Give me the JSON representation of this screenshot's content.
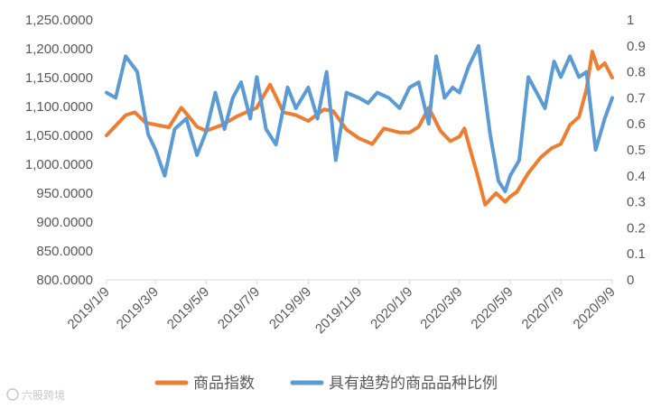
{
  "chart_data": {
    "type": "line",
    "title": "",
    "xlabel": "",
    "ylabel": "",
    "left_axis": {
      "ylim": [
        800,
        1250
      ],
      "ticks": [
        "800.0000",
        "850.0000",
        "900.0000",
        "950.0000",
        "1,000.0000",
        "1,050.0000",
        "1,100.0000",
        "1,150.0000",
        "1,200.0000",
        "1,250.0000"
      ]
    },
    "right_axis": {
      "ylim": [
        0,
        1
      ],
      "ticks": [
        "0",
        "0.1",
        "0.2",
        "0.3",
        "0.4",
        "0.5",
        "0.6",
        "0.7",
        "0.8",
        "0.9",
        "1"
      ]
    },
    "x_ticks": [
      "2019/1/9",
      "2019/3/9",
      "2019/5/9",
      "2019/7/9",
      "2019/9/9",
      "2019/11/9",
      "2020/1/9",
      "2020/3/9",
      "2020/5/9",
      "2020/7/9",
      "2020/9/9"
    ],
    "grid": false,
    "legend_position": "bottom",
    "series": [
      {
        "name": "商品指数",
        "axis": "left",
        "color": "#ED7D31",
        "x": [
          "2019-01-09",
          "2019-02-01",
          "2019-02-12",
          "2019-02-25",
          "2019-03-11",
          "2019-03-25",
          "2019-04-09",
          "2019-04-15",
          "2019-04-28",
          "2019-05-09",
          "2019-05-28",
          "2019-06-15",
          "2019-06-26",
          "2019-07-09",
          "2019-07-25",
          "2019-08-10",
          "2019-08-25",
          "2019-09-09",
          "2019-09-28",
          "2019-10-09",
          "2019-10-25",
          "2019-11-09",
          "2019-11-25",
          "2019-12-09",
          "2019-12-28",
          "2020-01-09",
          "2020-01-20",
          "2020-02-01",
          "2020-02-15",
          "2020-02-27",
          "2020-03-09",
          "2020-03-15",
          "2020-03-22",
          "2020-03-31",
          "2020-04-09",
          "2020-04-22",
          "2020-05-03",
          "2020-05-09",
          "2020-05-17",
          "2020-05-31",
          "2020-06-15",
          "2020-06-28",
          "2020-07-09",
          "2020-07-20",
          "2020-07-31",
          "2020-08-09",
          "2020-08-16",
          "2020-08-23",
          "2020-08-31",
          "2020-09-09"
        ],
        "values": [
          1050,
          1085,
          1090,
          1072,
          1068,
          1064,
          1098,
          1088,
          1065,
          1058,
          1068,
          1083,
          1090,
          1098,
          1138,
          1090,
          1085,
          1075,
          1095,
          1092,
          1060,
          1045,
          1035,
          1062,
          1055,
          1055,
          1065,
          1098,
          1058,
          1040,
          1048,
          1062,
          1025,
          980,
          930,
          950,
          935,
          944,
          952,
          985,
          1012,
          1028,
          1035,
          1068,
          1082,
          1130,
          1195,
          1165,
          1175,
          1150
        ]
      },
      {
        "name": "具有趋势的商品品种比例",
        "axis": "right",
        "color": "#5B9BD5",
        "x": [
          "2019-01-09",
          "2019-01-20",
          "2019-02-01",
          "2019-02-15",
          "2019-02-28",
          "2019-03-09",
          "2019-03-20",
          "2019-04-01",
          "2019-04-15",
          "2019-04-28",
          "2019-05-09",
          "2019-05-20",
          "2019-05-31",
          "2019-06-10",
          "2019-06-20",
          "2019-07-01",
          "2019-07-09",
          "2019-07-20",
          "2019-08-01",
          "2019-08-15",
          "2019-08-25",
          "2019-09-09",
          "2019-09-20",
          "2019-10-01",
          "2019-10-12",
          "2019-10-25",
          "2019-11-09",
          "2019-11-20",
          "2019-12-01",
          "2019-12-15",
          "2019-12-28",
          "2020-01-09",
          "2020-01-20",
          "2020-02-01",
          "2020-02-10",
          "2020-02-20",
          "2020-03-01",
          "2020-03-09",
          "2020-03-20",
          "2020-04-01",
          "2020-04-15",
          "2020-04-25",
          "2020-05-03",
          "2020-05-09",
          "2020-05-20",
          "2020-05-31",
          "2020-06-10",
          "2020-06-20",
          "2020-07-01",
          "2020-07-09",
          "2020-07-20",
          "2020-07-31",
          "2020-08-09",
          "2020-08-20",
          "2020-08-31",
          "2020-09-09"
        ],
        "values": [
          0.72,
          0.7,
          0.86,
          0.8,
          0.56,
          0.5,
          0.4,
          0.58,
          0.62,
          0.48,
          0.57,
          0.72,
          0.58,
          0.7,
          0.76,
          0.62,
          0.78,
          0.58,
          0.52,
          0.74,
          0.66,
          0.74,
          0.62,
          0.8,
          0.46,
          0.72,
          0.7,
          0.68,
          0.72,
          0.7,
          0.66,
          0.74,
          0.76,
          0.6,
          0.86,
          0.7,
          0.74,
          0.72,
          0.82,
          0.9,
          0.56,
          0.38,
          0.34,
          0.4,
          0.46,
          0.78,
          0.72,
          0.66,
          0.84,
          0.78,
          0.86,
          0.78,
          0.8,
          0.5,
          0.62,
          0.7
        ]
      }
    ]
  },
  "watermark": "六股跨境"
}
